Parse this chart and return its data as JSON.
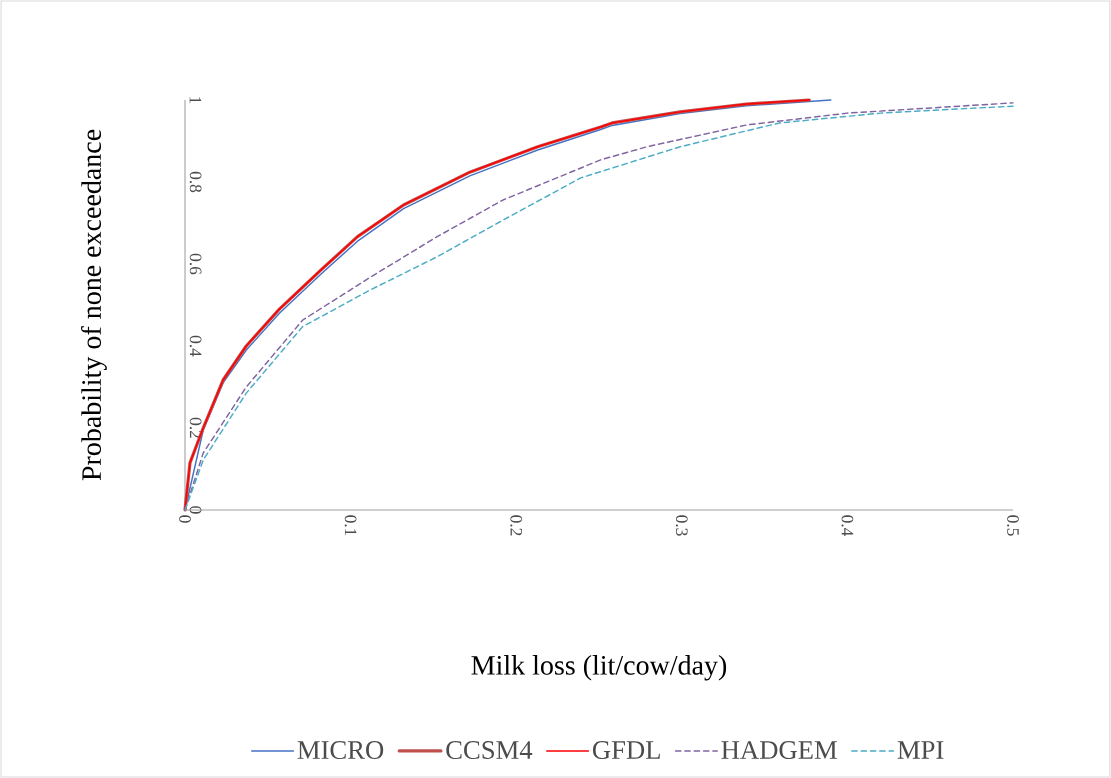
{
  "chart_data": {
    "type": "line",
    "xlabel": "Milk loss (lit/cow/day)",
    "ylabel": "Probability of none exceedance",
    "xlim": [
      0,
      0.5
    ],
    "ylim": [
      0,
      1
    ],
    "xticks": [
      0,
      0.1,
      0.2,
      0.3,
      0.4,
      0.5
    ],
    "yticks": [
      0,
      0.2,
      0.4,
      0.6,
      0.8,
      1
    ],
    "grid": false,
    "legend": "bottom",
    "marker": "none",
    "series": [
      {
        "name": "MICRO",
        "color": "#4472c4",
        "line_style": "solid",
        "x": [
          0,
          0.003,
          0.011,
          0.023,
          0.037,
          0.057,
          0.082,
          0.104,
          0.132,
          0.172,
          0.213,
          0.251,
          0.258,
          0.299,
          0.339,
          0.39
        ],
        "values": [
          0,
          null,
          0.195,
          0.31,
          0.39,
          0.48,
          0.575,
          0.655,
          0.735,
          0.815,
          0.878,
          0.928,
          0.938,
          0.967,
          0.986,
          1.0
        ]
      },
      {
        "name": "CCSM4",
        "color": "#c0504d",
        "line_style": "solid",
        "x": [
          0,
          0.003,
          0.011,
          0.023,
          0.037,
          0.057,
          0.082,
          0.104,
          0.132,
          0.172,
          0.213,
          0.251,
          0.258,
          0.299,
          0.339,
          0.377
        ],
        "values": [
          0,
          0.115,
          0.2,
          0.317,
          0.4,
          0.49,
          0.585,
          0.666,
          0.744,
          0.824,
          0.886,
          0.934,
          0.944,
          0.971,
          0.99,
          1.0
        ]
      },
      {
        "name": "GFDL",
        "color": "#ff0000",
        "line_style": "solid",
        "x": [
          0,
          0.003,
          0.011,
          0.023,
          0.037,
          0.057,
          0.082,
          0.104,
          0.132,
          0.172,
          0.213,
          0.251,
          0.258,
          0.299,
          0.339,
          0.377
        ],
        "values": [
          0,
          0.115,
          0.2,
          0.317,
          0.4,
          0.49,
          0.585,
          0.666,
          0.744,
          0.824,
          0.886,
          0.934,
          0.944,
          0.971,
          0.99,
          1.0
        ]
      },
      {
        "name": "HADGEM",
        "color": "#8064a2",
        "line_style": "dashed",
        "x": [
          0,
          0.011,
          0.037,
          0.071,
          0.112,
          0.152,
          0.192,
          0.251,
          0.279,
          0.339,
          0.4,
          0.5
        ],
        "values": [
          0,
          0.139,
          0.3,
          0.463,
          0.568,
          0.666,
          0.756,
          0.854,
          0.886,
          0.939,
          0.968,
          0.993
        ]
      },
      {
        "name": "MPI",
        "color": "#4bacc6",
        "line_style": "dashed",
        "x": [
          0,
          0.011,
          0.037,
          0.071,
          0.112,
          0.152,
          0.192,
          0.239,
          0.299,
          0.359,
          0.42,
          0.5
        ],
        "values": [
          0,
          0.122,
          0.285,
          0.447,
          0.537,
          0.617,
          0.707,
          0.81,
          0.886,
          0.944,
          0.968,
          0.985
        ]
      }
    ]
  }
}
